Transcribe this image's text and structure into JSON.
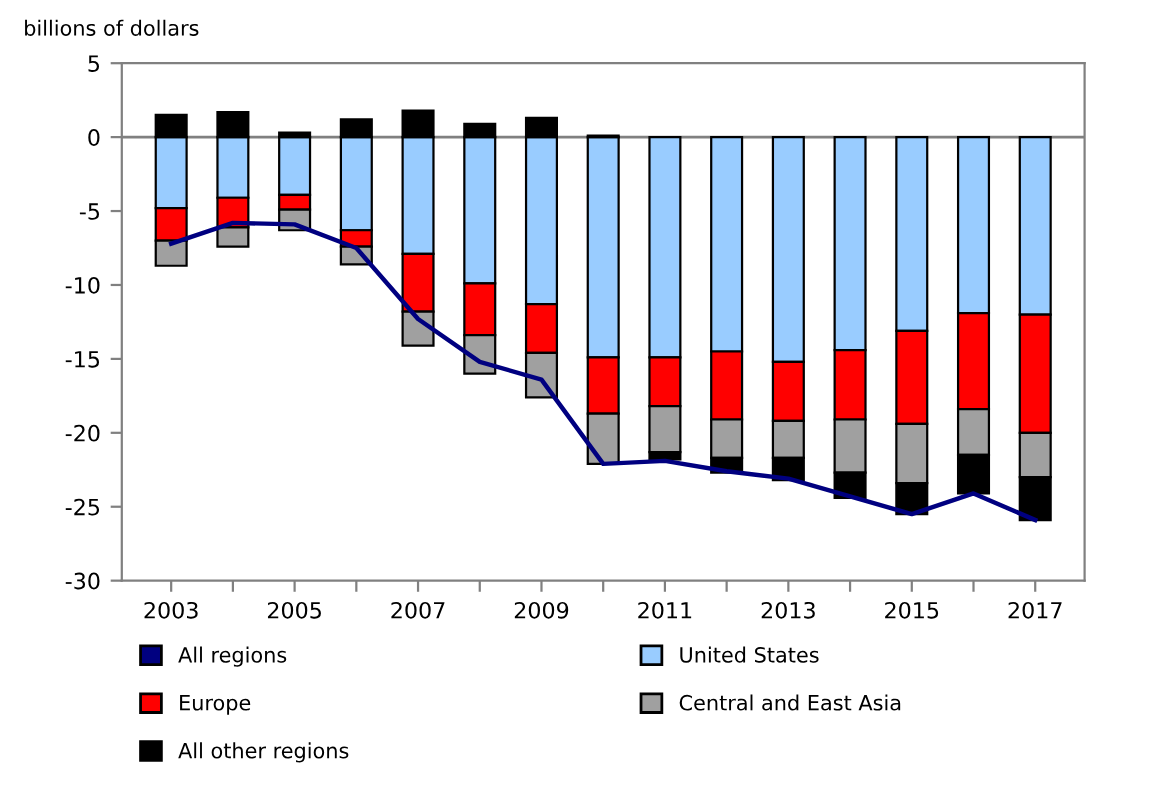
{
  "chart_data": {
    "type": "bar",
    "stacked": true,
    "ylabel": "billions of dollars",
    "categories": [
      "2003",
      null,
      "2005",
      null,
      "2007",
      null,
      "2009",
      null,
      "2011",
      null,
      "2013",
      null,
      "2015",
      null,
      "2017"
    ],
    "series": [
      {
        "name": "All regions",
        "type": "line",
        "color": "#000080",
        "values": [
          -7.2,
          -5.8,
          -5.9,
          -7.5,
          -12.3,
          -15.2,
          -16.4,
          -22.1,
          -21.9,
          -22.6,
          -23.1,
          -24.3,
          -25.5,
          -24.1,
          -25.9
        ]
      },
      {
        "name": "United States",
        "color": "#99ccff",
        "values": [
          -4.8,
          -4.1,
          -3.9,
          -6.3,
          -7.9,
          -9.9,
          -11.3,
          -14.9,
          -14.9,
          -14.5,
          -15.2,
          -14.4,
          -13.1,
          -11.9,
          -12.0
        ]
      },
      {
        "name": "Europe",
        "color": "#ff0000",
        "values": [
          -2.2,
          -2.0,
          -1.0,
          -1.1,
          -3.9,
          -3.5,
          -3.3,
          -3.8,
          -3.3,
          -4.6,
          -4.0,
          -4.7,
          -6.3,
          -6.5,
          -8.0
        ]
      },
      {
        "name": "Central and East Asia",
        "color": "#a0a0a0",
        "values": [
          -1.7,
          -1.3,
          -1.4,
          -1.2,
          -2.3,
          -2.6,
          -3.0,
          -3.4,
          -3.1,
          -2.6,
          -2.5,
          -3.6,
          -4.0,
          -3.1,
          -3.0
        ]
      },
      {
        "name": "All other regions",
        "color": "#000000",
        "values": [
          1.5,
          1.7,
          0.3,
          1.2,
          1.8,
          0.9,
          1.3,
          0.1,
          -0.5,
          -1.0,
          -1.5,
          -1.7,
          -2.1,
          -2.6,
          -2.9
        ]
      }
    ],
    "ylim": [
      -30,
      5
    ],
    "yticks": [
      -30,
      -25,
      -20,
      -15,
      -10,
      -5,
      0,
      5
    ],
    "ref_lines": [
      {
        "axis": "y",
        "value": 0,
        "color": "#808080"
      }
    ],
    "grid": false,
    "legend": "bottom",
    "marker": "none",
    "line_style": "solid"
  }
}
